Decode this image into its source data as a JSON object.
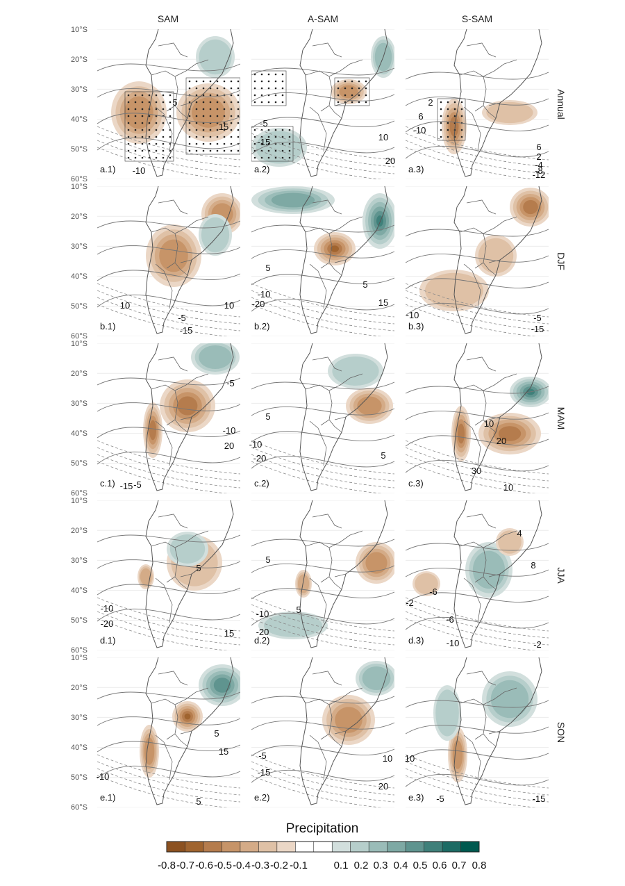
{
  "columns": [
    "SAM",
    "A-SAM",
    "S-SAM"
  ],
  "rows": [
    "Annual",
    "DJF",
    "MAM",
    "JJA",
    "SON"
  ],
  "lat_labels": [
    "10°S",
    "20°S",
    "30°S",
    "40°S",
    "50°S",
    "60°S"
  ],
  "panels": [
    {
      "label": "a.1)",
      "contours": [
        "5",
        "15",
        "-10"
      ]
    },
    {
      "label": "a.2)",
      "contours": [
        "-5",
        "-15",
        "10",
        "20"
      ]
    },
    {
      "label": "a.3)",
      "contours": [
        "2",
        "6",
        "-10",
        "6",
        "2",
        "-4",
        "-8",
        "-12"
      ]
    },
    {
      "label": "b.1)",
      "contours": [
        "10",
        "10",
        "-5",
        "-15"
      ]
    },
    {
      "label": "b.2)",
      "contours": [
        "5",
        "5",
        "-10",
        "-20",
        "15"
      ]
    },
    {
      "label": "b.3)",
      "contours": [
        "-10",
        "-5",
        "-15"
      ]
    },
    {
      "label": "c.1)",
      "contours": [
        "-5",
        "-10",
        "20",
        "-15",
        "-5"
      ]
    },
    {
      "label": "c.2)",
      "contours": [
        "5",
        "-10",
        "-20",
        "5"
      ]
    },
    {
      "label": "c.3)",
      "contours": [
        "10",
        "20",
        "30",
        "10"
      ]
    },
    {
      "label": "d.1)",
      "contours": [
        "5",
        "-10",
        "-20",
        "15"
      ]
    },
    {
      "label": "d.2)",
      "contours": [
        "5",
        "5",
        "-10",
        "-20"
      ]
    },
    {
      "label": "d.3)",
      "contours": [
        "4",
        "8",
        "-6",
        "-2",
        "-6",
        "-10",
        "-2"
      ]
    },
    {
      "label": "e.1)",
      "contours": [
        "5",
        "15",
        "-10",
        "5"
      ]
    },
    {
      "label": "e.2)",
      "contours": [
        "-5",
        "-15",
        "10",
        "20"
      ]
    },
    {
      "label": "e.3)",
      "contours": [
        "10",
        "-5",
        "-15"
      ]
    }
  ],
  "legend": {
    "title": "Precipitation",
    "ticks_left": [
      "-0.8",
      "-0.7",
      "-0.6",
      "-0.5",
      "-0.4",
      "-0.3",
      "-0.2",
      "-0.1"
    ],
    "ticks_right": [
      "0.1",
      "0.2",
      "0.3",
      "0.4",
      "0.5",
      "0.6",
      "0.7",
      "0.8"
    ],
    "colors": [
      "#8c5120",
      "#a0642f",
      "#b57c4d",
      "#c79468",
      "#d4ab87",
      "#dfc1a6",
      "#ebd7c6",
      "#ffffff",
      "#ffffff",
      "#d2dfdd",
      "#b6cecb",
      "#9abcb8",
      "#7ea9a4",
      "#5f948f",
      "#3f807a",
      "#1c6b64",
      "#00594f"
    ]
  },
  "colors": {
    "dry": "#a35f27",
    "wet": "#1b6f66",
    "contour": "#666666",
    "border": "#555555"
  }
}
